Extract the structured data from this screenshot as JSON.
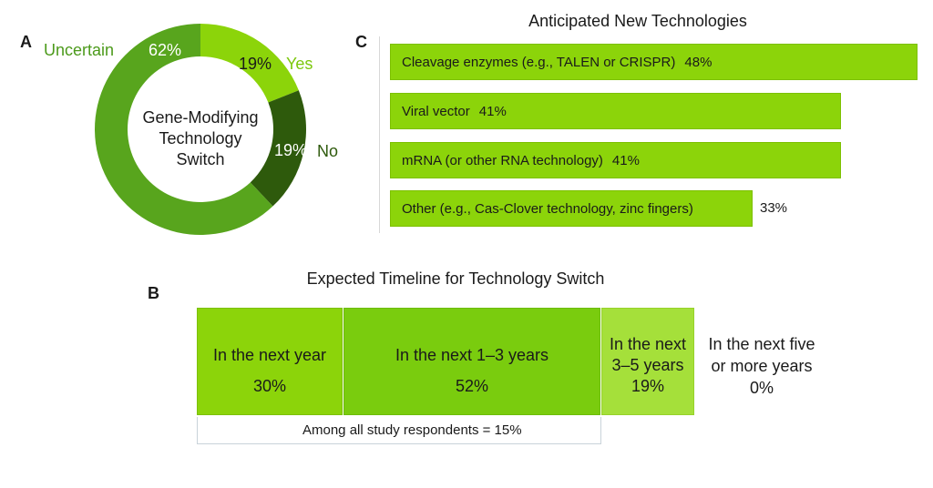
{
  "chart_data": [
    {
      "panel": "A",
      "type": "pie",
      "title": "Gene-Modifying Technology Switch",
      "title_lines": [
        "Gene-Modifying",
        "Technology",
        "Switch"
      ],
      "categories": [
        "Yes",
        "No",
        "Uncertain"
      ],
      "values": [
        19,
        19,
        62
      ],
      "value_labels": [
        "19%",
        "19%",
        "62%"
      ],
      "colors": [
        "#8cd40a",
        "#2e5a0c",
        "#58a51d"
      ]
    },
    {
      "panel": "B",
      "type": "bar",
      "orientation": "stacked-horizontal",
      "title": "Expected Timeline for Technology Switch",
      "categories": [
        "In the next year",
        "In the next 1–3 years",
        "In the next 3–5 years",
        "In the next five or more years"
      ],
      "label_lines": [
        [
          "In the next year"
        ],
        [
          "In the next 1–3 years"
        ],
        [
          "In the next",
          "3–5 years"
        ],
        [
          "In the next five",
          "or more years"
        ]
      ],
      "values": [
        30,
        52,
        19,
        0
      ],
      "value_labels": [
        "30%",
        "52%",
        "19%",
        "0%"
      ],
      "colors": [
        "#8cd40a",
        "#7acc0e",
        "#a5e03a",
        "#ffffff"
      ],
      "note": "Among all study respondents = 15%"
    },
    {
      "panel": "C",
      "type": "bar",
      "orientation": "horizontal",
      "title": "Anticipated New Technologies",
      "categories": [
        "Cleavage enzymes (e.g., TALEN or CRISPR)",
        "Viral vector",
        "mRNA (or other RNA technology)",
        "Other (e.g., Cas-Clover technology, zinc fingers)"
      ],
      "values": [
        48,
        41,
        41,
        33
      ],
      "value_labels": [
        "48%",
        "41%",
        "41%",
        "33%"
      ],
      "xlim": [
        0,
        48
      ],
      "color": "#8cd40a"
    }
  ]
}
